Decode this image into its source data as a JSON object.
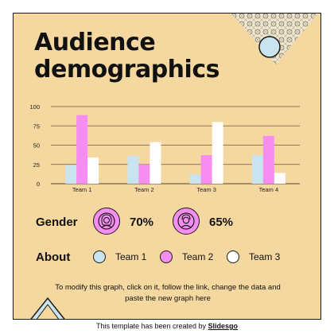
{
  "title": "Audience demographics",
  "chart_data": {
    "type": "bar",
    "categories": [
      "Team 1",
      "Team 2",
      "Team 3",
      "Team 4"
    ],
    "series": [
      {
        "values": [
          24,
          36,
          12,
          37
        ],
        "color": "#c9e4ef"
      },
      {
        "values": [
          89,
          25,
          37,
          62
        ],
        "color": "#f68ef2"
      },
      {
        "values": [
          34,
          54,
          80,
          14
        ],
        "color": "#ffffff"
      }
    ],
    "y_ticks": [
      "0",
      "25",
      "50",
      "75",
      "100"
    ],
    "ylim": [
      0,
      100
    ],
    "grid": true
  },
  "gender": {
    "label": "Gender",
    "items": [
      {
        "icon": "female-icon",
        "percent": "70%"
      },
      {
        "icon": "male-icon",
        "percent": "65%"
      }
    ]
  },
  "about": {
    "label": "About",
    "legend": [
      {
        "label": "Team 1",
        "color": "#c9e4ef"
      },
      {
        "label": "Team 2",
        "color": "#f68ef2"
      },
      {
        "label": "Team 3",
        "color": "#ffffff"
      }
    ]
  },
  "note": "To modify this graph, click on it, follow the link, change the data and paste the new graph here",
  "credit": {
    "prefix": "This template has been created by",
    "brand": "Slidesgo"
  }
}
